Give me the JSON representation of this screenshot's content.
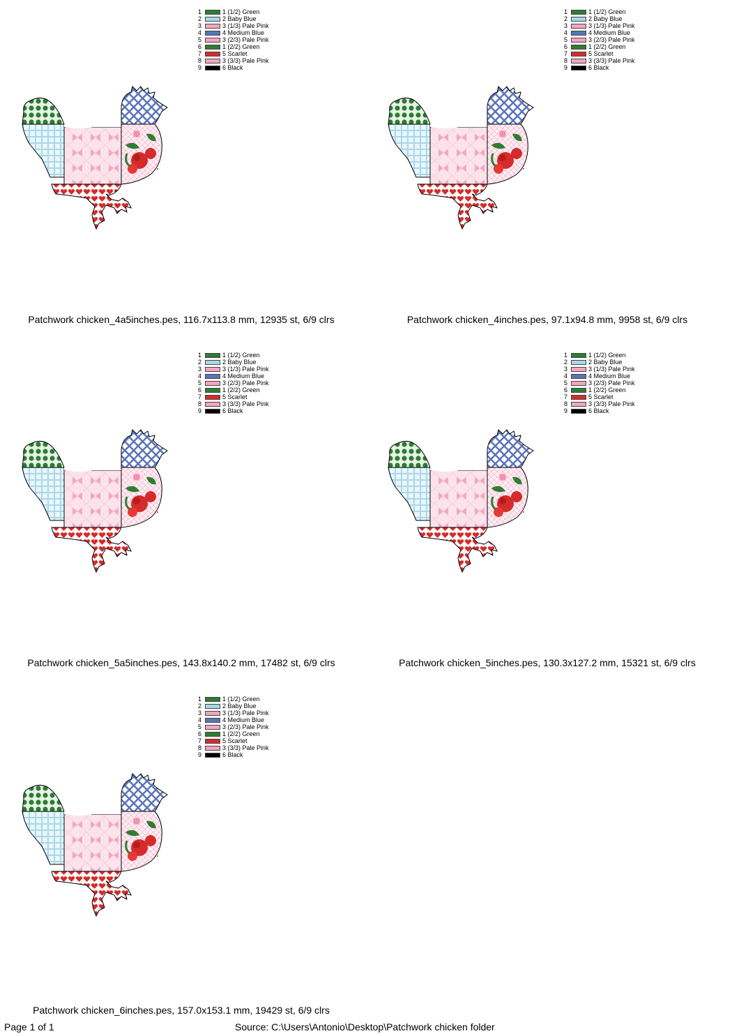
{
  "colors": [
    "#2e7d32",
    "#a8d8ea",
    "#f4a6c0",
    "#5a74b9",
    "#f4a6c0",
    "#2e7d32",
    "#d62b2b",
    "#f4a6c0",
    "#000000"
  ],
  "legend": [
    {
      "num": "1",
      "label": "1 (1/2) Green"
    },
    {
      "num": "2",
      "label": "2 Baby Blue"
    },
    {
      "num": "3",
      "label": "3 (1/3) Pale Pink"
    },
    {
      "num": "4",
      "label": "4 Medium Blue"
    },
    {
      "num": "5",
      "label": "3 (2/3) Pale Pink"
    },
    {
      "num": "6",
      "label": "1 (2/2) Green"
    },
    {
      "num": "7",
      "label": "5 Scarlet"
    },
    {
      "num": "8",
      "label": "3 (3/3) Pale Pink"
    },
    {
      "num": "9",
      "label": "6 Black"
    }
  ],
  "designs": [
    {
      "caption": "Patchwork chicken_4a5inches.pes, 116.7x113.8 mm, 12935 st, 6/9 clrs"
    },
    {
      "caption": "Patchwork chicken_4inches.pes, 97.1x94.8 mm, 9958 st, 6/9 clrs"
    },
    {
      "caption": "Patchwork chicken_5a5inches.pes, 143.8x140.2 mm, 17482 st, 6/9 clrs"
    },
    {
      "caption": "Patchwork chicken_5inches.pes, 130.3x127.2 mm, 15321 st, 6/9 clrs"
    },
    {
      "caption": "Patchwork chicken_6inches.pes, 157.0x153.1 mm, 19429 st, 6/9 clrs"
    }
  ],
  "footer": {
    "page": "Page 1 of 1",
    "source": "Source: C:\\Users\\Antonio\\Desktop\\Patchwork chicken folder"
  }
}
